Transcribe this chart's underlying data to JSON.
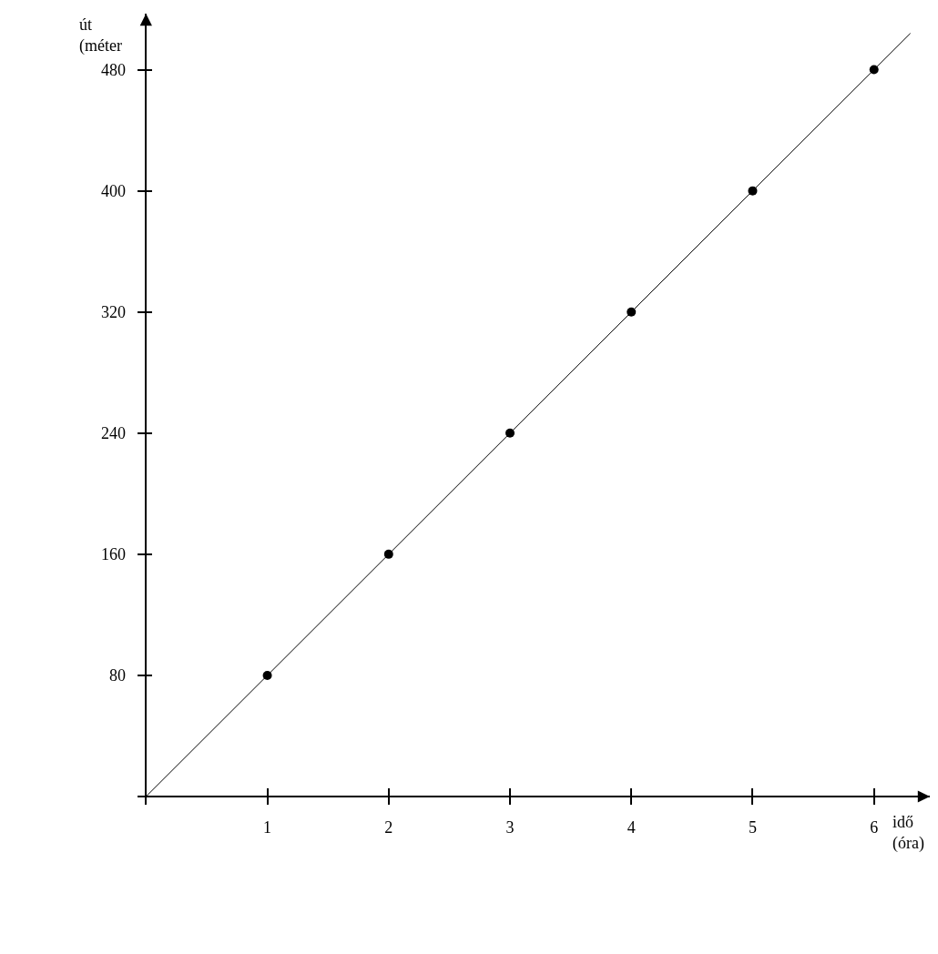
{
  "chart_data": {
    "type": "scatter",
    "xlabel": "idő\n(óra)",
    "ylabel": "út\n(méter",
    "xlim": [
      -0.07,
      6.46
    ],
    "ylim": [
      -5.4,
      517
    ],
    "xticks": [
      1,
      2,
      3,
      4,
      5,
      6
    ],
    "yticks": [
      80,
      160,
      240,
      320,
      400,
      480
    ],
    "marker": "circle",
    "series": [
      {
        "type": "line",
        "marker": "none",
        "color": "#000000",
        "x": [
          0,
          6.3
        ],
        "values": [
          0,
          504
        ]
      },
      {
        "color": "#000000",
        "x": [
          1,
          2,
          3,
          4,
          5,
          6
        ],
        "values": [
          80,
          160,
          240,
          320,
          400,
          480
        ]
      }
    ]
  }
}
